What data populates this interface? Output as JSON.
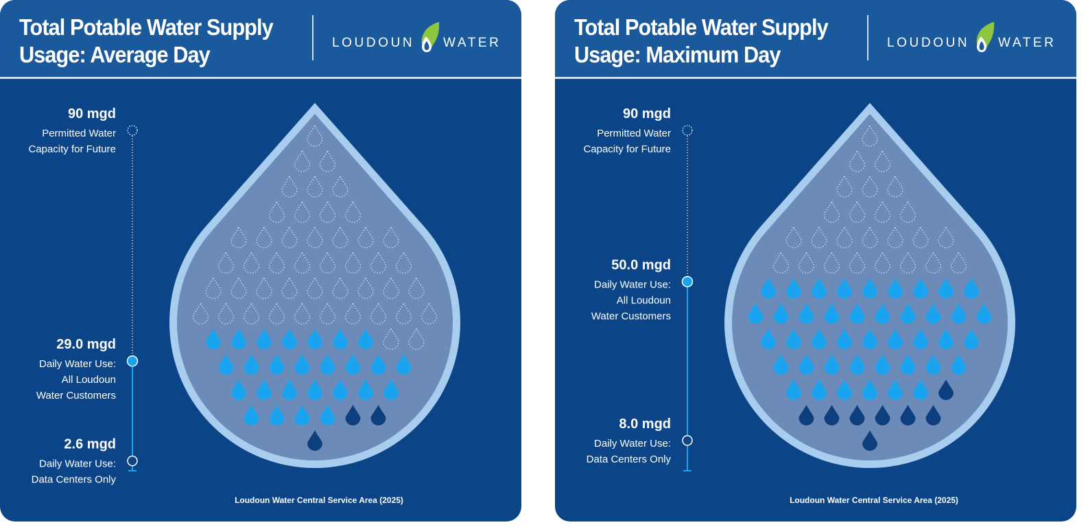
{
  "colors": {
    "panel_bg": "#0b4587",
    "header_bg": "#1a5a9c",
    "drop_fill": "#6d8bb8",
    "drop_outline": "#a9cdef",
    "customer_drop": "#1aa3ee",
    "datacenter_drop": "#0d3f7e",
    "logo_green": "#8dc63f"
  },
  "logo": {
    "left_word": "LOUDOUN",
    "right_word": "WATER",
    "icon": "water-drop-leaf-icon"
  },
  "panels": [
    {
      "title_line1": "Total Potable Water Supply",
      "title_line2": "Usage: Average Day",
      "caption": "Loudoun Water Central Service Area (2025)",
      "chart_data": {
        "type": "pictogram",
        "scale_max_mgd": 90,
        "unit": "mgd",
        "levels": [
          {
            "value_label": "90 mgd",
            "lines": [
              "Permitted Water",
              "Capacity for Future"
            ],
            "value": 90,
            "marker": "dotted"
          },
          {
            "value_label": "29.0 mgd",
            "lines": [
              "Daily Water Use:",
              "All Loudoun",
              "Water Customers"
            ],
            "value": 29.0,
            "marker": "filled"
          },
          {
            "value_label": "2.6 mgd",
            "lines": [
              "Daily Water Use:",
              "Data Centers Only"
            ],
            "value": 2.6,
            "marker": "hollow"
          }
        ],
        "customer_drops": 29,
        "datacenter_drops": 3
      }
    },
    {
      "title_line1": "Total Potable Water Supply",
      "title_line2": "Usage: Maximum Day",
      "caption": "Loudoun Water Central Service Area (2025)",
      "chart_data": {
        "type": "pictogram",
        "scale_max_mgd": 90,
        "unit": "mgd",
        "levels": [
          {
            "value_label": "90 mgd",
            "lines": [
              "Permitted Water",
              "Capacity for Future"
            ],
            "value": 90,
            "marker": "dotted"
          },
          {
            "value_label": "50.0 mgd",
            "lines": [
              "Daily Water Use:",
              "All Loudoun",
              "Water Customers"
            ],
            "value": 50.0,
            "marker": "filled"
          },
          {
            "value_label": "8.0 mgd",
            "lines": [
              "Daily Water Use:",
              "Data Centers Only"
            ],
            "value": 8.0,
            "marker": "hollow"
          }
        ],
        "customer_drops": 50,
        "datacenter_drops": 8
      }
    }
  ]
}
